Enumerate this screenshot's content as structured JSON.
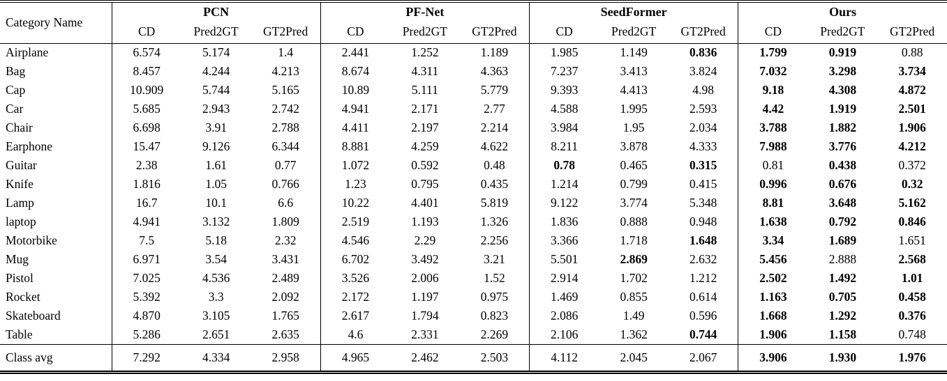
{
  "colors": {
    "background": "#ffffff",
    "text": "#000000",
    "rule": "#000000"
  },
  "table": {
    "category_header": "Category Name",
    "groups": [
      {
        "name": "PCN"
      },
      {
        "name": "PF-Net"
      },
      {
        "name": "SeedFormer"
      },
      {
        "name": "Ours"
      }
    ],
    "sub_headers": [
      "CD",
      "Pred2GT",
      "GT2Pred"
    ],
    "rows": [
      {
        "category": "Airplane",
        "values": [
          "6.574",
          "5.174",
          "1.4",
          "2.441",
          "1.252",
          "1.189",
          "1.985",
          "1.149",
          "0.836",
          "1.799",
          "0.919",
          "0.88"
        ],
        "bold": [
          false,
          false,
          false,
          false,
          false,
          false,
          false,
          false,
          true,
          true,
          true,
          false
        ]
      },
      {
        "category": "Bag",
        "values": [
          "8.457",
          "4.244",
          "4.213",
          "8.674",
          "4.311",
          "4.363",
          "7.237",
          "3.413",
          "3.824",
          "7.032",
          "3.298",
          "3.734"
        ],
        "bold": [
          false,
          false,
          false,
          false,
          false,
          false,
          false,
          false,
          false,
          true,
          true,
          true
        ]
      },
      {
        "category": "Cap",
        "values": [
          "10.909",
          "5.744",
          "5.165",
          "10.89",
          "5.111",
          "5.779",
          "9.393",
          "4.413",
          "4.98",
          "9.18",
          "4.308",
          "4.872"
        ],
        "bold": [
          false,
          false,
          false,
          false,
          false,
          false,
          false,
          false,
          false,
          true,
          true,
          true
        ]
      },
      {
        "category": "Car",
        "values": [
          "5.685",
          "2.943",
          "2.742",
          "4.941",
          "2.171",
          "2.77",
          "4.588",
          "1.995",
          "2.593",
          "4.42",
          "1.919",
          "2.501"
        ],
        "bold": [
          false,
          false,
          false,
          false,
          false,
          false,
          false,
          false,
          false,
          true,
          true,
          true
        ]
      },
      {
        "category": "Chair",
        "values": [
          "6.698",
          "3.91",
          "2.788",
          "4.411",
          "2.197",
          "2.214",
          "3.984",
          "1.95",
          "2.034",
          "3.788",
          "1.882",
          "1.906"
        ],
        "bold": [
          false,
          false,
          false,
          false,
          false,
          false,
          false,
          false,
          false,
          true,
          true,
          true
        ]
      },
      {
        "category": "Earphone",
        "values": [
          "15.47",
          "9.126",
          "6.344",
          "8.881",
          "4.259",
          "4.622",
          "8.211",
          "3.878",
          "4.333",
          "7.988",
          "3.776",
          "4.212"
        ],
        "bold": [
          false,
          false,
          false,
          false,
          false,
          false,
          false,
          false,
          false,
          true,
          true,
          true
        ]
      },
      {
        "category": "Guitar",
        "values": [
          "2.38",
          "1.61",
          "0.77",
          "1.072",
          "0.592",
          "0.48",
          "0.78",
          "0.465",
          "0.315",
          "0.81",
          "0.438",
          "0.372"
        ],
        "bold": [
          false,
          false,
          false,
          false,
          false,
          false,
          true,
          false,
          true,
          false,
          true,
          false
        ]
      },
      {
        "category": "Knife",
        "values": [
          "1.816",
          "1.05",
          "0.766",
          "1.23",
          "0.795",
          "0.435",
          "1.214",
          "0.799",
          "0.415",
          "0.996",
          "0.676",
          "0.32"
        ],
        "bold": [
          false,
          false,
          false,
          false,
          false,
          false,
          false,
          false,
          false,
          true,
          true,
          true
        ]
      },
      {
        "category": "Lamp",
        "values": [
          "16.7",
          "10.1",
          "6.6",
          "10.22",
          "4.401",
          "5.819",
          "9.122",
          "3.774",
          "5.348",
          "8.81",
          "3.648",
          "5.162"
        ],
        "bold": [
          false,
          false,
          false,
          false,
          false,
          false,
          false,
          false,
          false,
          true,
          true,
          true
        ]
      },
      {
        "category": "laptop",
        "values": [
          "4.941",
          "3.132",
          "1.809",
          "2.519",
          "1.193",
          "1.326",
          "1.836",
          "0.888",
          "0.948",
          "1.638",
          "0.792",
          "0.846"
        ],
        "bold": [
          false,
          false,
          false,
          false,
          false,
          false,
          false,
          false,
          false,
          true,
          true,
          true
        ]
      },
      {
        "category": "Motorbike",
        "values": [
          "7.5",
          "5.18",
          "2.32",
          "4.546",
          "2.29",
          "2.256",
          "3.366",
          "1.718",
          "1.648",
          "3.34",
          "1.689",
          "1.651"
        ],
        "bold": [
          false,
          false,
          false,
          false,
          false,
          false,
          false,
          false,
          true,
          true,
          true,
          false
        ]
      },
      {
        "category": "Mug",
        "values": [
          "6.971",
          "3.54",
          "3.431",
          "6.702",
          "3.492",
          "3.21",
          "5.501",
          "2.869",
          "2.632",
          "5.456",
          "2.888",
          "2.568"
        ],
        "bold": [
          false,
          false,
          false,
          false,
          false,
          false,
          false,
          true,
          false,
          true,
          false,
          true
        ]
      },
      {
        "category": "Pistol",
        "values": [
          "7.025",
          "4.536",
          "2.489",
          "3.526",
          "2.006",
          "1.52",
          "2.914",
          "1.702",
          "1.212",
          "2.502",
          "1.492",
          "1.01"
        ],
        "bold": [
          false,
          false,
          false,
          false,
          false,
          false,
          false,
          false,
          false,
          true,
          true,
          true
        ]
      },
      {
        "category": "Rocket",
        "values": [
          "5.392",
          "3.3",
          "2.092",
          "2.172",
          "1.197",
          "0.975",
          "1.469",
          "0.855",
          "0.614",
          "1.163",
          "0.705",
          "0.458"
        ],
        "bold": [
          false,
          false,
          false,
          false,
          false,
          false,
          false,
          false,
          false,
          true,
          true,
          true
        ]
      },
      {
        "category": "Skateboard",
        "values": [
          "4.870",
          "3.105",
          "1.765",
          "2.617",
          "1.794",
          "0.823",
          "2.086",
          "1.49",
          "0.596",
          "1.668",
          "1.292",
          "0.376"
        ],
        "bold": [
          false,
          false,
          false,
          false,
          false,
          false,
          false,
          false,
          false,
          true,
          true,
          true
        ]
      },
      {
        "category": "Table",
        "values": [
          "5.286",
          "2.651",
          "2.635",
          "4.6",
          "2.331",
          "2.269",
          "2.106",
          "1.362",
          "0.744",
          "1.906",
          "1.158",
          "0.748"
        ],
        "bold": [
          false,
          false,
          false,
          false,
          false,
          false,
          false,
          false,
          true,
          true,
          true,
          false
        ]
      }
    ],
    "footer": {
      "category": "Class avg",
      "values": [
        "7.292",
        "4.334",
        "2.958",
        "4.965",
        "2.462",
        "2.503",
        "4.112",
        "2.045",
        "2.067",
        "3.906",
        "1.930",
        "1.976"
      ],
      "bold": [
        false,
        false,
        false,
        false,
        false,
        false,
        false,
        false,
        false,
        true,
        true,
        true
      ]
    }
  }
}
